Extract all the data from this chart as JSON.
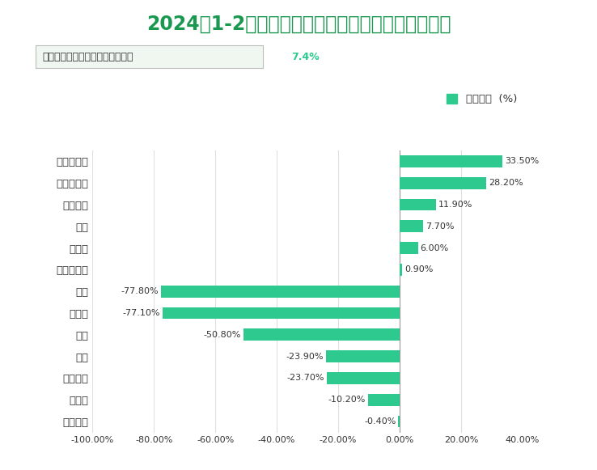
{
  "title": "2024年1-2月海北州规模以上工业产品产量增长情况",
  "subtitle_text": "全州规模以上工业增加值同比增长",
  "subtitle_highlight": "7.4%",
  "legend_label": "产量增长  (%)",
  "categories": [
    "风力发电",
    "乳制品",
    "水力发电",
    "原煤",
    "饲料",
    "方便面",
    "石灰",
    "太阳能发电",
    "供电量",
    "热力",
    "火力发电",
    "微生物肥料",
    "鲜、冷藏肉"
  ],
  "values": [
    -0.4,
    -10.2,
    -23.7,
    -23.9,
    -50.8,
    -77.1,
    -77.8,
    0.9,
    6.0,
    7.7,
    11.9,
    28.2,
    33.5
  ],
  "bar_color": "#2DC98E",
  "title_color": "#1a9850",
  "subtitle_box_color": "#f0f7f0",
  "subtitle_box_border": "#bbbbbb",
  "subtitle_text_color": "#333333",
  "subtitle_highlight_color": "#2DC98E",
  "xlim": [
    -100,
    40
  ],
  "xtick_labels": [
    "-100.00%",
    "-80.00%",
    "-60.00%",
    "-40.00%",
    "-20.00%",
    "0.00%",
    "20.00%",
    "40.00%"
  ],
  "xtick_values": [
    -100,
    -80,
    -60,
    -40,
    -20,
    0,
    20,
    40
  ],
  "background_color": "#ffffff",
  "grid_color": "#e0e0e0"
}
